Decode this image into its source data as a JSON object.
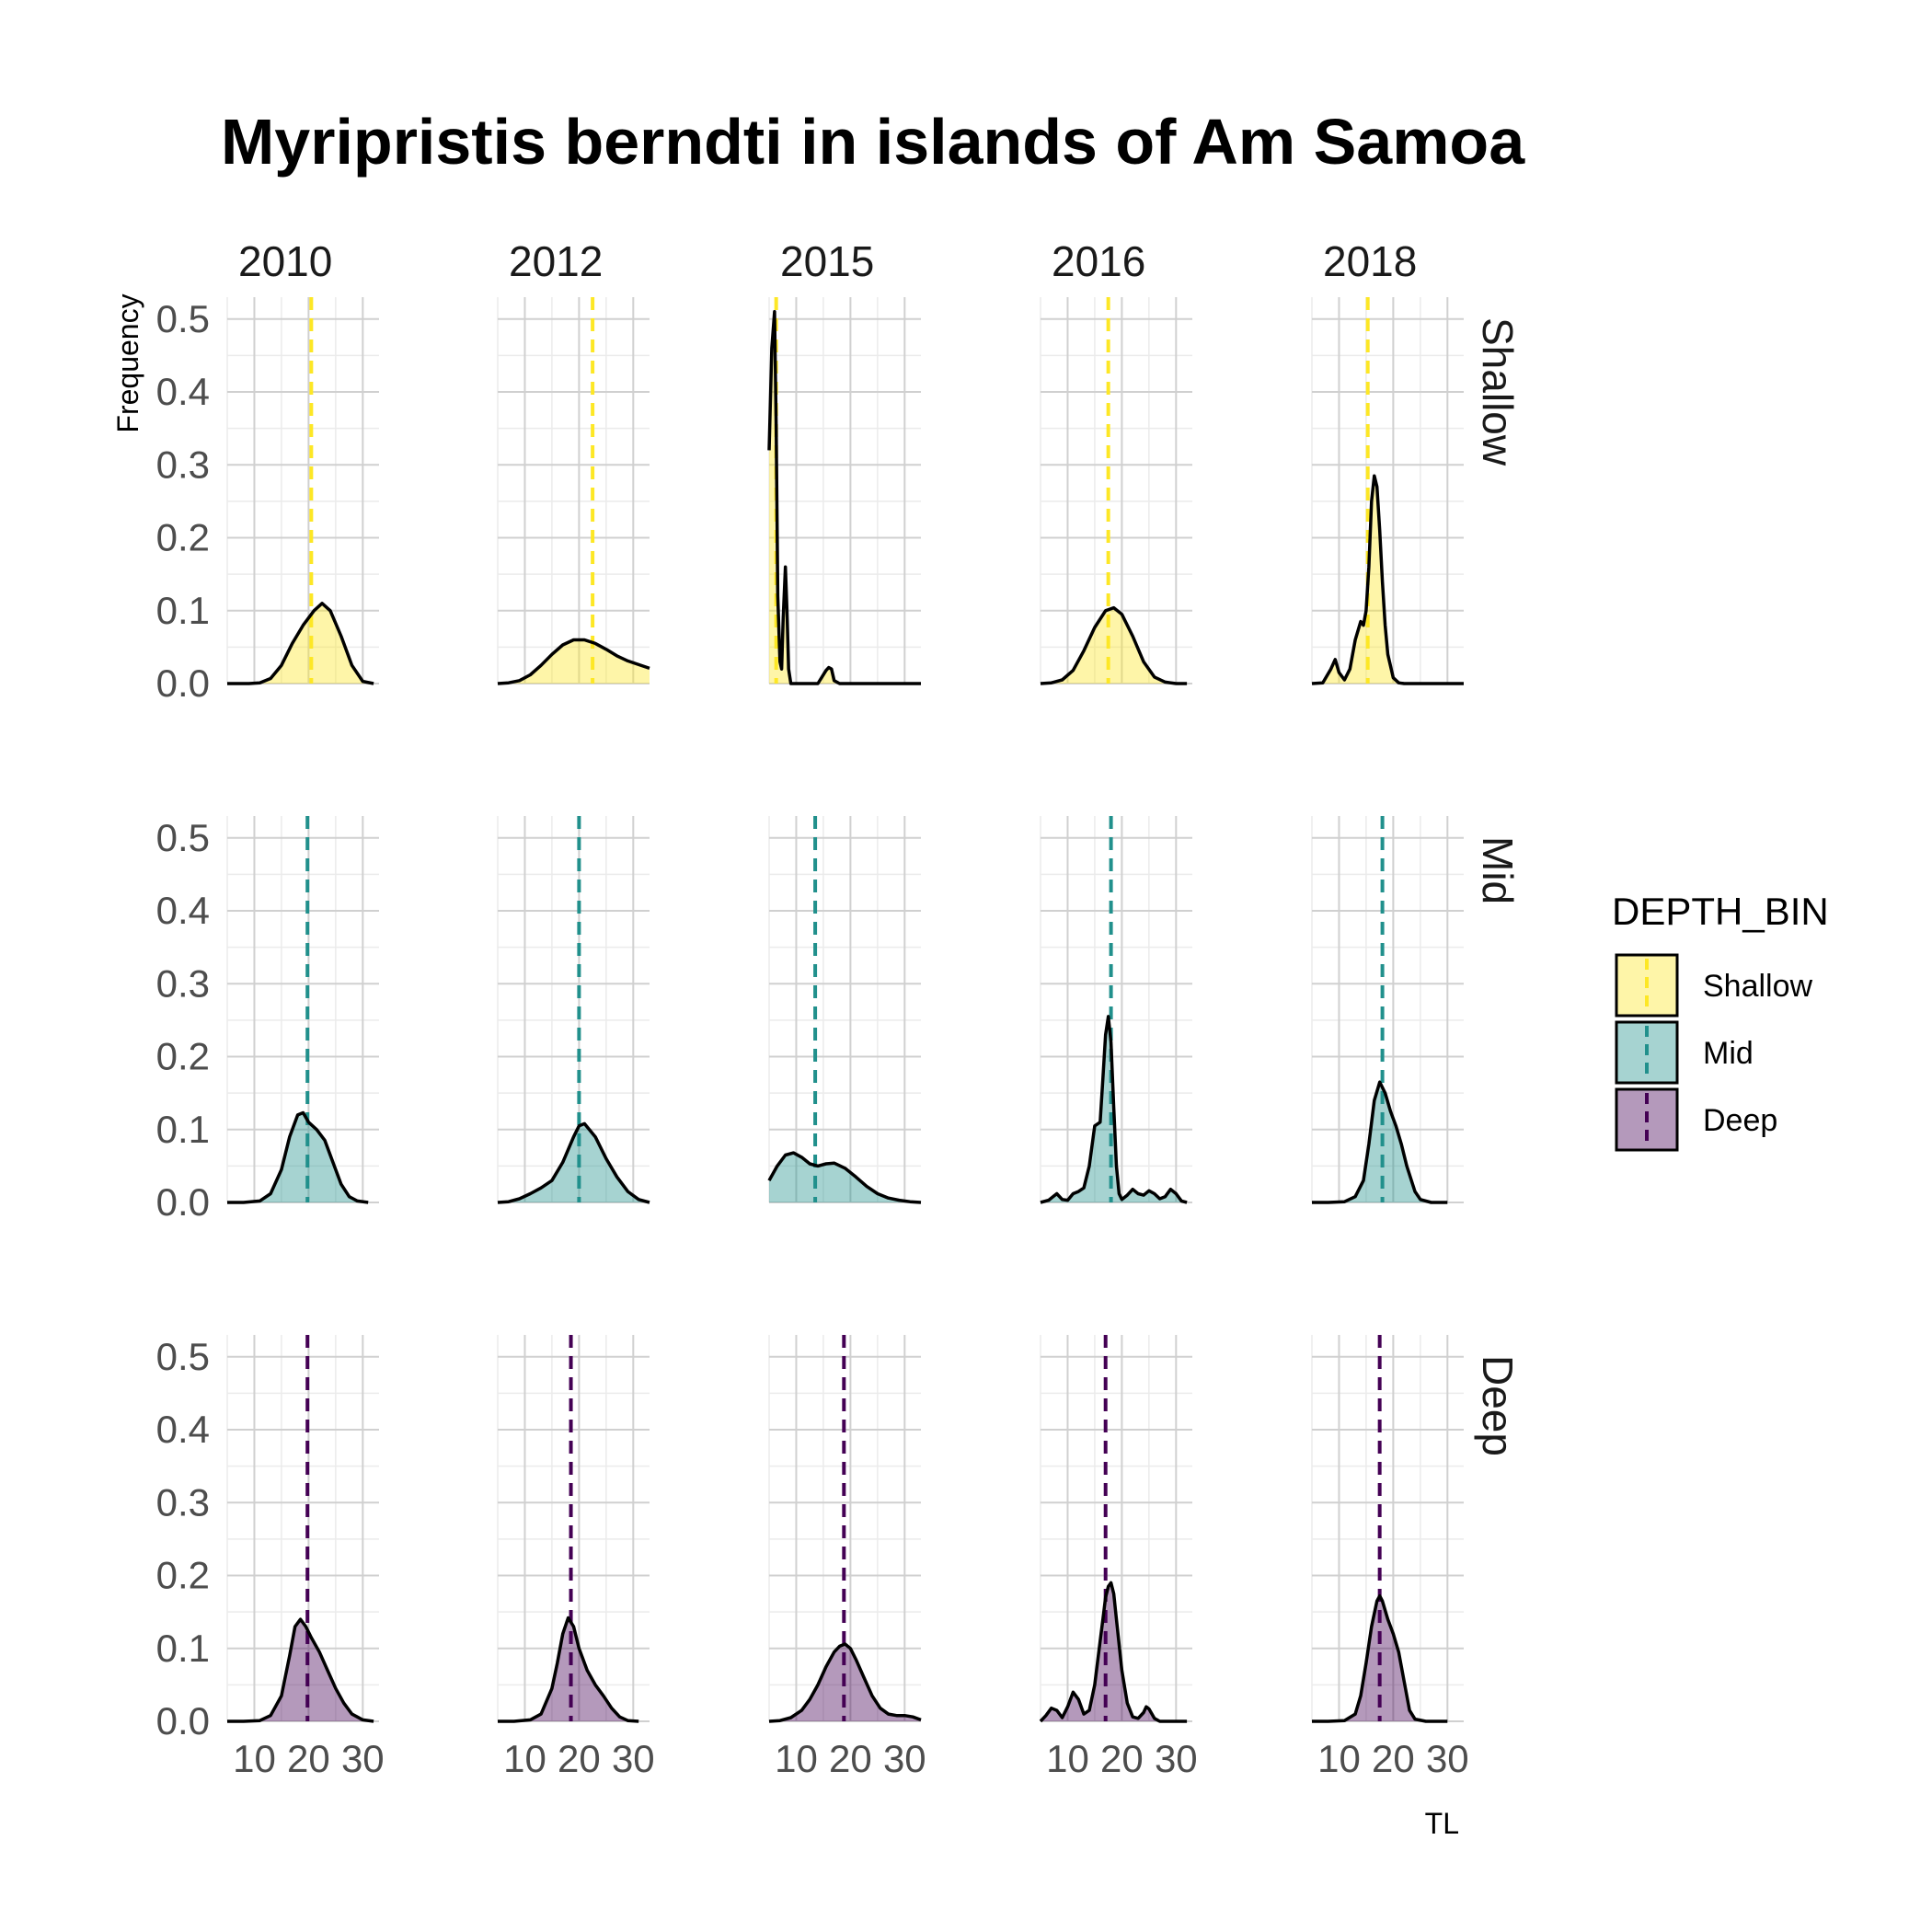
{
  "chart_data": {
    "type": "area",
    "title": "Myripristis berndti in islands of Am Samoa",
    "xlabel": "TL",
    "ylabel": "Frequency",
    "x_range": [
      5,
      33
    ],
    "x_ticks": [
      10,
      20,
      30
    ],
    "y_range": [
      0,
      0.53
    ],
    "y_ticks": [
      0.0,
      0.1,
      0.2,
      0.3,
      0.4,
      0.5
    ],
    "y_tick_labels": [
      "0.0",
      "0.1",
      "0.2",
      "0.3",
      "0.4",
      "0.5"
    ],
    "grid": true,
    "legend": {
      "title": "DEPTH_BIN",
      "position": "right"
    },
    "columns": [
      "2010",
      "2012",
      "2015",
      "2016",
      "2018"
    ],
    "rows": [
      {
        "name": "Shallow",
        "fill": "#FDE725",
        "line": "#FDE725"
      },
      {
        "name": "Mid",
        "fill": "#21908C",
        "line": "#21908C"
      },
      {
        "name": "Deep",
        "fill": "#440154",
        "line": "#440154"
      }
    ],
    "panels": [
      {
        "row": "Shallow",
        "col": "2010",
        "mean": 20.5,
        "x": [
          5.0,
          7.0,
          9.0,
          11.0,
          13.0,
          15.0,
          17.0,
          19.0,
          21.0,
          22.5,
          24.0,
          26.0,
          28.0,
          30.0,
          32.0
        ],
        "y": [
          0.0,
          0.0,
          0.0,
          0.001,
          0.007,
          0.025,
          0.055,
          0.08,
          0.1,
          0.11,
          0.1,
          0.065,
          0.025,
          0.003,
          0.0
        ]
      },
      {
        "row": "Shallow",
        "col": "2012",
        "mean": 22.5,
        "x": [
          5.0,
          7.0,
          9.0,
          11.0,
          13.0,
          15.0,
          17.0,
          19.0,
          21.0,
          23.0,
          25.0,
          27.0,
          29.0,
          31.0,
          33.0
        ],
        "y": [
          0.0,
          0.001,
          0.004,
          0.012,
          0.025,
          0.04,
          0.053,
          0.06,
          0.06,
          0.055,
          0.047,
          0.038,
          0.031,
          0.026,
          0.021
        ]
      },
      {
        "row": "Shallow",
        "col": "2015",
        "mean": 6.3,
        "x": [
          5.0,
          5.5,
          6.0,
          6.3,
          6.6,
          7.0,
          7.3,
          7.6,
          8.0,
          8.3,
          8.6,
          9.0,
          10.0,
          12.0,
          14.0,
          15.5,
          16.0,
          16.5,
          17.0,
          18.0,
          20.0,
          25.0,
          33.0
        ],
        "y": [
          0.32,
          0.46,
          0.51,
          0.35,
          0.12,
          0.03,
          0.02,
          0.09,
          0.16,
          0.1,
          0.02,
          0.0,
          0.0,
          0.0,
          0.0,
          0.018,
          0.022,
          0.02,
          0.004,
          0.0,
          0.0,
          0.0,
          0.0
        ]
      },
      {
        "row": "Shallow",
        "col": "2016",
        "mean": 17.5,
        "x": [
          5.0,
          7.0,
          9.0,
          11.0,
          13.0,
          15.0,
          17.0,
          18.5,
          20.0,
          22.0,
          24.0,
          26.0,
          28.0,
          30.0,
          32.0
        ],
        "y": [
          0.0,
          0.001,
          0.005,
          0.018,
          0.045,
          0.077,
          0.1,
          0.104,
          0.095,
          0.065,
          0.03,
          0.009,
          0.002,
          0.0,
          0.0
        ]
      },
      {
        "row": "Shallow",
        "col": "2018",
        "mean": 15.3,
        "x": [
          5.0,
          7.0,
          8.5,
          9.3,
          10.0,
          11.0,
          12.0,
          13.0,
          14.0,
          14.5,
          15.0,
          15.5,
          16.0,
          16.5,
          17.0,
          17.5,
          18.0,
          18.5,
          19.0,
          20.0,
          21.0,
          22.0,
          25.0,
          30.0,
          33.0
        ],
        "y": [
          0.0,
          0.001,
          0.02,
          0.033,
          0.015,
          0.005,
          0.02,
          0.06,
          0.085,
          0.08,
          0.1,
          0.16,
          0.25,
          0.285,
          0.27,
          0.21,
          0.14,
          0.08,
          0.04,
          0.008,
          0.001,
          0.0,
          0.0,
          0.0,
          0.0
        ]
      },
      {
        "row": "Mid",
        "col": "2010",
        "mean": 19.8,
        "x": [
          5.0,
          8.0,
          11.0,
          13.0,
          15.0,
          16.5,
          18.0,
          19.0,
          20.0,
          21.5,
          23.0,
          24.5,
          26.0,
          27.5,
          29.0,
          31.0
        ],
        "y": [
          0.0,
          0.0,
          0.002,
          0.012,
          0.045,
          0.09,
          0.12,
          0.123,
          0.11,
          0.1,
          0.085,
          0.055,
          0.025,
          0.008,
          0.002,
          0.0
        ]
      },
      {
        "row": "Mid",
        "col": "2012",
        "mean": 20.0,
        "x": [
          5.0,
          7.0,
          9.0,
          11.0,
          13.0,
          15.0,
          17.0,
          19.0,
          20.0,
          21.0,
          23.0,
          25.0,
          27.0,
          29.0,
          31.0,
          33.0
        ],
        "y": [
          0.0,
          0.001,
          0.005,
          0.012,
          0.02,
          0.03,
          0.055,
          0.09,
          0.105,
          0.108,
          0.09,
          0.06,
          0.035,
          0.015,
          0.004,
          0.0
        ]
      },
      {
        "row": "Mid",
        "col": "2015",
        "mean": 13.5,
        "x": [
          5.0,
          6.5,
          8.0,
          9.5,
          11.0,
          12.5,
          14.0,
          15.5,
          17.0,
          19.0,
          21.0,
          23.0,
          25.0,
          27.0,
          29.0,
          31.0,
          33.0
        ],
        "y": [
          0.03,
          0.05,
          0.065,
          0.068,
          0.062,
          0.053,
          0.05,
          0.053,
          0.054,
          0.047,
          0.035,
          0.022,
          0.012,
          0.006,
          0.003,
          0.001,
          0.0
        ]
      },
      {
        "row": "Mid",
        "col": "2016",
        "mean": 18.0,
        "x": [
          5.0,
          6.5,
          8.0,
          9.0,
          10.0,
          11.0,
          12.0,
          13.0,
          14.0,
          15.0,
          16.0,
          16.5,
          17.0,
          17.5,
          18.0,
          18.5,
          19.0,
          19.5,
          20.0,
          21.0,
          22.0,
          23.0,
          24.0,
          25.0,
          26.0,
          27.0,
          28.0,
          29.0,
          30.0,
          31.0,
          32.0
        ],
        "y": [
          0.0,
          0.003,
          0.012,
          0.004,
          0.003,
          0.012,
          0.015,
          0.02,
          0.05,
          0.105,
          0.11,
          0.17,
          0.23,
          0.255,
          0.22,
          0.13,
          0.05,
          0.012,
          0.004,
          0.01,
          0.018,
          0.012,
          0.01,
          0.016,
          0.012,
          0.005,
          0.008,
          0.018,
          0.012,
          0.002,
          0.0
        ]
      },
      {
        "row": "Mid",
        "col": "2018",
        "mean": 18.0,
        "x": [
          5.0,
          8.0,
          11.0,
          13.0,
          14.5,
          15.5,
          16.5,
          17.5,
          18.5,
          19.5,
          20.5,
          21.5,
          22.5,
          24.0,
          25.0,
          27.0,
          30.0
        ],
        "y": [
          0.0,
          0.0,
          0.001,
          0.008,
          0.03,
          0.08,
          0.14,
          0.165,
          0.15,
          0.125,
          0.105,
          0.08,
          0.05,
          0.015,
          0.004,
          0.0,
          0.0
        ]
      },
      {
        "row": "Deep",
        "col": "2010",
        "mean": 19.8,
        "x": [
          5.0,
          8.0,
          11.0,
          13.0,
          15.0,
          16.5,
          17.5,
          18.5,
          19.5,
          20.5,
          22.0,
          23.5,
          25.0,
          26.5,
          28.0,
          30.0,
          32.0
        ],
        "y": [
          0.0,
          0.0,
          0.001,
          0.008,
          0.035,
          0.09,
          0.13,
          0.14,
          0.13,
          0.115,
          0.095,
          0.07,
          0.045,
          0.025,
          0.01,
          0.002,
          0.0
        ]
      },
      {
        "row": "Deep",
        "col": "2012",
        "mean": 18.5,
        "x": [
          5.0,
          8.0,
          11.0,
          13.0,
          15.0,
          16.0,
          17.0,
          18.0,
          19.0,
          20.0,
          21.5,
          23.0,
          24.5,
          26.0,
          27.5,
          29.0,
          31.0
        ],
        "y": [
          0.0,
          0.0,
          0.002,
          0.01,
          0.045,
          0.08,
          0.12,
          0.142,
          0.13,
          0.1,
          0.07,
          0.05,
          0.035,
          0.018,
          0.006,
          0.001,
          0.0
        ]
      },
      {
        "row": "Deep",
        "col": "2015",
        "mean": 18.8,
        "x": [
          5.0,
          7.0,
          9.0,
          11.0,
          12.5,
          14.0,
          15.5,
          17.0,
          18.0,
          19.0,
          20.0,
          21.0,
          22.5,
          24.0,
          25.5,
          27.0,
          28.5,
          30.0,
          31.5,
          33.0
        ],
        "y": [
          0.0,
          0.001,
          0.005,
          0.015,
          0.03,
          0.05,
          0.075,
          0.095,
          0.103,
          0.106,
          0.1,
          0.085,
          0.06,
          0.035,
          0.018,
          0.01,
          0.008,
          0.008,
          0.006,
          0.002
        ]
      },
      {
        "row": "Deep",
        "col": "2016",
        "mean": 17.0,
        "x": [
          5.0,
          6.0,
          7.0,
          8.0,
          9.0,
          10.0,
          11.0,
          12.0,
          13.0,
          14.0,
          15.0,
          16.0,
          16.5,
          17.0,
          17.5,
          18.0,
          18.5,
          19.0,
          20.0,
          21.0,
          22.0,
          23.0,
          24.0,
          24.5,
          25.0,
          26.0,
          27.0,
          32.0
        ],
        "y": [
          0.0,
          0.008,
          0.018,
          0.015,
          0.005,
          0.02,
          0.04,
          0.03,
          0.01,
          0.015,
          0.05,
          0.11,
          0.14,
          0.17,
          0.185,
          0.19,
          0.175,
          0.14,
          0.07,
          0.025,
          0.006,
          0.004,
          0.012,
          0.02,
          0.017,
          0.004,
          0.0,
          0.0
        ]
      },
      {
        "row": "Deep",
        "col": "2018",
        "mean": 17.5,
        "x": [
          5.0,
          8.0,
          11.0,
          13.0,
          14.0,
          15.0,
          16.0,
          17.0,
          17.5,
          18.0,
          19.0,
          20.0,
          21.0,
          22.0,
          23.0,
          24.0,
          26.0,
          30.0
        ],
        "y": [
          0.0,
          0.0,
          0.001,
          0.01,
          0.035,
          0.08,
          0.13,
          0.165,
          0.172,
          0.165,
          0.14,
          0.12,
          0.095,
          0.055,
          0.015,
          0.003,
          0.0,
          0.0
        ]
      }
    ]
  }
}
